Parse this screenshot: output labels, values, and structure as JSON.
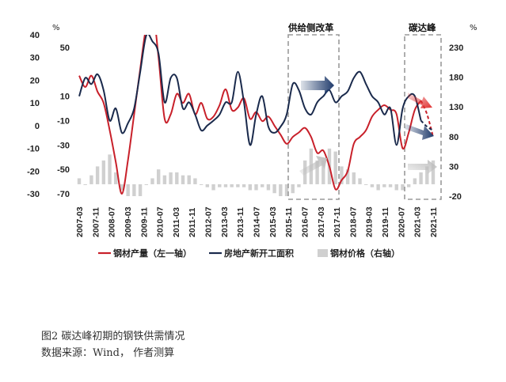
{
  "chart_data": {
    "type": "line",
    "left_axis_1": {
      "unit": "%",
      "ticks": [
        40,
        30,
        20,
        10,
        0,
        -10,
        -20,
        -30
      ]
    },
    "left_axis_2": {
      "ticks": [
        50,
        10,
        -10,
        -30,
        -50,
        -70
      ]
    },
    "right_axis": {
      "unit": "%",
      "ticks": [
        230,
        180,
        130,
        80,
        30,
        -20
      ]
    },
    "x_ticks": [
      "2007-03",
      "2007-11",
      "2008-07",
      "2009-03",
      "2009-11",
      "2010-07",
      "2011-03",
      "2011-11",
      "2012-07",
      "2013-03",
      "2013-11",
      "2014-07",
      "2015-03",
      "2015-11",
      "2016-07",
      "2017-03",
      "2017-11",
      "2018-07",
      "2019-03",
      "2019-11",
      "2020-07",
      "2021-03",
      "2021-11"
    ],
    "annotations": [
      {
        "label": "供给侧改革"
      },
      {
        "label": "碳达峰"
      }
    ],
    "legend": [
      "钢材产量（左一轴）",
      "房地产新开工面积",
      "钢材价格（右轴）"
    ],
    "series": [
      {
        "name": "钢材产量（左一轴）",
        "axis": "left_axis_1",
        "color": "#c8202a",
        "x": [
          2007.17,
          2007.42,
          2007.67,
          2007.92,
          2008.17,
          2008.42,
          2008.67,
          2008.92,
          2009.17,
          2009.42,
          2009.67,
          2009.92,
          2010.17,
          2010.42,
          2010.67,
          2010.92,
          2011.17,
          2011.42,
          2011.67,
          2011.92,
          2012.17,
          2012.42,
          2012.67,
          2012.92,
          2013.17,
          2013.42,
          2013.67,
          2013.92,
          2014.17,
          2014.42,
          2014.67,
          2014.92,
          2015.17,
          2015.42,
          2015.67,
          2015.92,
          2016.17,
          2016.42,
          2016.67,
          2016.92,
          2017.17,
          2017.42,
          2017.67,
          2017.92,
          2018.17,
          2018.42,
          2018.67,
          2018.92,
          2019.17,
          2019.42,
          2019.67,
          2019.92,
          2020.17,
          2020.42,
          2020.67,
          2020.92,
          2021.17,
          2021.42,
          2021.67
        ],
        "y": [
          22,
          17,
          22,
          15,
          10,
          -2,
          -16,
          -30,
          -15,
          5,
          25,
          44,
          52,
          30,
          3,
          5,
          14,
          10,
          14,
          5,
          10,
          3,
          4,
          9,
          16,
          7,
          8,
          12,
          3,
          6,
          2,
          4,
          0,
          -4,
          -8,
          -5,
          -3,
          -1,
          -5,
          -12,
          -11,
          -18,
          -28,
          -24,
          -20,
          -8,
          -5,
          -2,
          4,
          7,
          9,
          7,
          5,
          -10,
          -3,
          7,
          11,
          8,
          3
        ],
        "projection": {
          "x": [
            2021.17,
            2021.42,
            2021.67
          ],
          "y": [
            11,
            5,
            -5
          ]
        }
      },
      {
        "name": "房地产新开工面积",
        "axis": "left_axis_2",
        "color": "#1a2a4c",
        "x": [
          2007.17,
          2007.42,
          2007.67,
          2007.92,
          2008.17,
          2008.42,
          2008.67,
          2008.92,
          2009.17,
          2009.42,
          2009.67,
          2009.92,
          2010.17,
          2010.42,
          2010.67,
          2010.92,
          2011.17,
          2011.42,
          2011.67,
          2011.92,
          2012.17,
          2012.42,
          2012.67,
          2012.92,
          2013.17,
          2013.42,
          2013.67,
          2013.92,
          2014.17,
          2014.42,
          2014.67,
          2014.92,
          2015.17,
          2015.42,
          2015.67,
          2015.92,
          2016.17,
          2016.42,
          2016.67,
          2016.92,
          2017.17,
          2017.42,
          2017.67,
          2017.92,
          2018.17,
          2018.42,
          2018.67,
          2018.92,
          2019.17,
          2019.42,
          2019.67,
          2019.92,
          2020.17,
          2020.42,
          2020.67,
          2020.92,
          2021.17,
          2021.42,
          2021.67
        ],
        "y": [
          10,
          25,
          20,
          28,
          15,
          -10,
          0,
          -20,
          -12,
          0,
          30,
          60,
          55,
          45,
          5,
          25,
          25,
          0,
          5,
          -5,
          -18,
          -14,
          -10,
          -5,
          5,
          5,
          30,
          5,
          -30,
          -5,
          10,
          -15,
          -20,
          -15,
          -5,
          20,
          15,
          0,
          -5,
          5,
          10,
          15,
          5,
          10,
          14,
          25,
          30,
          20,
          10,
          5,
          -5,
          0,
          -30,
          0,
          10,
          10,
          -10,
          -15,
          -18
        ],
        "projection": {
          "x": [
            2021.17,
            2021.42,
            2021.67
          ],
          "y": [
            -10,
            -15,
            -18
          ]
        }
      },
      {
        "name": "钢材价格（右轴）",
        "axis": "right_axis",
        "type": "bar",
        "color": "#d0d0d0",
        "x": [
          2007.17,
          2007.42,
          2007.67,
          2007.92,
          2008.17,
          2008.42,
          2008.67,
          2008.92,
          2009.17,
          2009.42,
          2009.67,
          2009.92,
          2010.17,
          2010.42,
          2010.67,
          2010.92,
          2011.17,
          2011.42,
          2011.67,
          2011.92,
          2012.17,
          2012.42,
          2012.67,
          2012.92,
          2013.17,
          2013.42,
          2013.67,
          2013.92,
          2014.17,
          2014.42,
          2014.67,
          2014.92,
          2015.17,
          2015.42,
          2015.67,
          2015.92,
          2016.17,
          2016.42,
          2016.67,
          2016.92,
          2017.17,
          2017.42,
          2017.67,
          2017.92,
          2018.17,
          2018.42,
          2018.67,
          2018.92,
          2019.17,
          2019.42,
          2019.67,
          2019.92,
          2020.17,
          2020.42,
          2020.67,
          2020.92,
          2021.17,
          2021.42,
          2021.67
        ],
        "y": [
          10,
          0,
          15,
          30,
          40,
          50,
          20,
          -10,
          -20,
          -20,
          -20,
          0,
          10,
          25,
          15,
          20,
          20,
          15,
          15,
          10,
          0,
          -5,
          -10,
          -5,
          -5,
          -5,
          -5,
          -5,
          -10,
          -10,
          -5,
          -10,
          -15,
          -20,
          -20,
          -15,
          -5,
          40,
          60,
          40,
          40,
          60,
          55,
          30,
          25,
          20,
          10,
          0,
          -5,
          -10,
          -5,
          -5,
          -10,
          -10,
          -5,
          10,
          20,
          30,
          40
        ]
      }
    ]
  },
  "caption": {
    "line1": "图2 碳达峰初期的钢铁供需情况",
    "line2": "数据来源：Wind， 作者测算"
  }
}
